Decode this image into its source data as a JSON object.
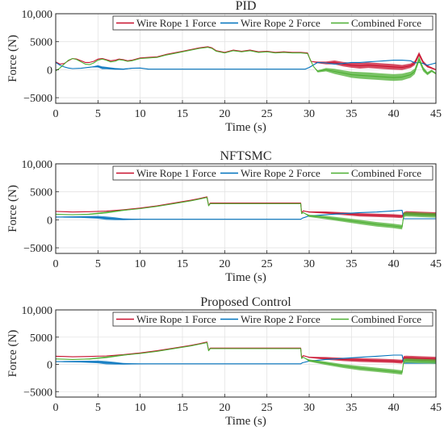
{
  "chart_data": [
    {
      "type": "line",
      "title": "PID",
      "xlabel": "Time (s)",
      "ylabel": "Force (N)",
      "xlim": [
        0,
        45
      ],
      "ylim": [
        -6000,
        10000
      ],
      "xticks": [
        0,
        5,
        10,
        15,
        20,
        25,
        30,
        35,
        40,
        45
      ],
      "yticks": [
        -5000,
        0,
        5000,
        10000
      ],
      "ytick_labels": [
        "−5000",
        "0",
        "5000",
        "10,000"
      ],
      "grid": true,
      "legend": "top-right",
      "series": [
        {
          "name": "Wire Rope 1 Force",
          "color": "#c8102e",
          "x": [
            0,
            0.5,
            1,
            1.5,
            2,
            2.5,
            3,
            3.5,
            4,
            4.5,
            5,
            5.5,
            6,
            6.5,
            7,
            7.5,
            8,
            8.5,
            9,
            10,
            11,
            12,
            13,
            14,
            15,
            16,
            17,
            18,
            18.5,
            19,
            20,
            21,
            22,
            23,
            24,
            25,
            26,
            27,
            28,
            29,
            29.8,
            30.2,
            31,
            32,
            33,
            34,
            35,
            36,
            37,
            38,
            39,
            40,
            41,
            42,
            42.5,
            43,
            43.5,
            44,
            45
          ],
          "y": [
            1400,
            1000,
            1100,
            1600,
            2000,
            1900,
            1600,
            1300,
            1300,
            1500,
            1900,
            2000,
            1800,
            1600,
            1700,
            1900,
            1800,
            1600,
            1700,
            2100,
            2200,
            2300,
            2700,
            3000,
            3300,
            3600,
            3900,
            4100,
            3900,
            3400,
            3100,
            3500,
            3300,
            3500,
            3200,
            3300,
            3100,
            3200,
            3100,
            3100,
            3000,
            1500,
            1300,
            1200,
            1300,
            1000,
            800,
            700,
            800,
            700,
            600,
            500,
            400,
            700,
            1200,
            2800,
            1300,
            600,
            0
          ],
          "noise": [
            0,
            0,
            0,
            0,
            0,
            0,
            0,
            0,
            0,
            0,
            0,
            0,
            0,
            0,
            0,
            0,
            0,
            0,
            0,
            0,
            0,
            0,
            0,
            0,
            0,
            0,
            0,
            0,
            0,
            0,
            0,
            0,
            0,
            0,
            0,
            0,
            0,
            0,
            0,
            0,
            0,
            0,
            150,
            250,
            350,
            400,
            450,
            500,
            500,
            500,
            500,
            500,
            450,
            400,
            400,
            400,
            300,
            200,
            100
          ]
        },
        {
          "name": "Wire Rope 2 Force",
          "color": "#0072bd",
          "x": [
            0,
            0.5,
            1,
            1.5,
            2,
            3,
            4,
            5,
            5.5,
            6,
            7,
            8,
            9,
            10,
            11,
            12,
            13,
            15,
            20,
            25,
            29.5,
            30,
            31,
            32,
            33,
            34,
            35,
            36,
            37,
            38,
            39,
            40,
            41,
            42,
            42.5,
            43,
            43.5,
            44,
            44.5,
            45
          ],
          "y": [
            1300,
            800,
            500,
            300,
            200,
            250,
            450,
            600,
            350,
            300,
            150,
            100,
            250,
            300,
            100,
            100,
            100,
            100,
            100,
            100,
            100,
            400,
            1300,
            1200,
            1000,
            1100,
            1300,
            1300,
            1400,
            1500,
            1600,
            1700,
            1700,
            1600,
            1200,
            1300,
            1100,
            800,
            1000,
            1200
          ],
          "noise": [
            0,
            0,
            0,
            0,
            0,
            0,
            0,
            200,
            250,
            200,
            150,
            100,
            50,
            30,
            0,
            0,
            0,
            0,
            0,
            0,
            0,
            0,
            0,
            0,
            0,
            0,
            0,
            0,
            0,
            0,
            0,
            0,
            0,
            0,
            0,
            0,
            0,
            0,
            0,
            0
          ]
        },
        {
          "name": "Combined Force",
          "color": "#4daf33",
          "x": [
            0,
            0.5,
            1,
            1.5,
            2,
            2.5,
            3,
            3.5,
            4,
            4.5,
            5,
            5.5,
            6,
            6.5,
            7,
            7.5,
            8,
            8.5,
            9,
            10,
            11,
            12,
            13,
            14,
            15,
            16,
            17,
            18,
            18.5,
            19,
            20,
            21,
            22,
            23,
            24,
            25,
            26,
            27,
            28,
            29,
            29.8,
            30.5,
            31,
            32,
            33,
            34,
            35,
            36,
            37,
            38,
            39,
            40,
            41,
            42,
            42.5,
            43,
            43.5,
            44,
            44.5,
            45
          ],
          "y": [
            -200,
            300,
            1000,
            1700,
            2000,
            1800,
            1400,
            1000,
            900,
            1200,
            1700,
            1900,
            1700,
            1400,
            1500,
            1800,
            1700,
            1500,
            1600,
            2000,
            2100,
            2200,
            2600,
            2900,
            3200,
            3500,
            3800,
            4000,
            3800,
            3300,
            3000,
            3400,
            3200,
            3400,
            3100,
            3200,
            3000,
            3100,
            3000,
            3000,
            2900,
            600,
            -300,
            0,
            -300,
            -600,
            -900,
            -1000,
            -1100,
            -1200,
            -1300,
            -1400,
            -1300,
            -900,
            -300,
            1900,
            100,
            -700,
            -200,
            -700
          ],
          "noise": [
            0,
            0,
            0,
            0,
            0,
            0,
            0,
            0,
            0,
            0,
            0,
            0,
            0,
            0,
            0,
            0,
            0,
            0,
            0,
            0,
            0,
            0,
            0,
            0,
            0,
            0,
            0,
            0,
            0,
            0,
            0,
            0,
            0,
            0,
            0,
            0,
            0,
            0,
            0,
            0,
            0,
            0,
            200,
            300,
            450,
            500,
            550,
            600,
            600,
            600,
            600,
            600,
            600,
            550,
            500,
            500,
            400,
            300,
            200,
            150
          ]
        }
      ]
    },
    {
      "type": "line",
      "title": "NFTSMC",
      "xlabel": "Time (s)",
      "ylabel": "Force (N)",
      "xlim": [
        0,
        45
      ],
      "ylim": [
        -6000,
        10000
      ],
      "xticks": [
        0,
        5,
        10,
        15,
        20,
        25,
        30,
        35,
        40,
        45
      ],
      "yticks": [
        -5000,
        0,
        5000,
        10000
      ],
      "ytick_labels": [
        "−5000",
        "0",
        "5000",
        "10,000"
      ],
      "grid": true,
      "legend": "top-right",
      "series": [
        {
          "name": "Wire Rope 1 Force",
          "color": "#c8102e",
          "x": [
            0,
            1,
            2,
            4,
            6,
            8,
            10,
            12,
            14,
            16,
            17,
            17.9,
            18.1,
            18.3,
            20,
            25,
            29,
            29.1,
            29.3,
            30,
            32,
            34,
            36,
            38,
            40,
            41,
            41.2,
            41.5,
            43,
            45
          ],
          "y": [
            1500,
            1450,
            1400,
            1450,
            1550,
            1800,
            2100,
            2500,
            3000,
            3500,
            3800,
            4100,
            2600,
            3000,
            3000,
            3000,
            3000,
            1300,
            1600,
            1400,
            1300,
            1100,
            900,
            800,
            700,
            600,
            1100,
            1200,
            1100,
            1000
          ],
          "noise": [
            0,
            0,
            0,
            0,
            0,
            0,
            0,
            0,
            0,
            0,
            0,
            0,
            0,
            0,
            0,
            0,
            0,
            0,
            0,
            100,
            200,
            250,
            300,
            300,
            300,
            300,
            300,
            350,
            350,
            350
          ]
        },
        {
          "name": "Wire Rope 2 Force",
          "color": "#0072bd",
          "x": [
            0,
            1,
            3,
            5,
            6,
            7,
            8,
            9,
            10,
            12,
            15,
            18,
            20,
            25,
            29,
            29.2,
            30,
            32,
            34,
            36,
            38,
            40,
            41,
            41.2,
            43,
            45
          ],
          "y": [
            500,
            500,
            500,
            450,
            300,
            200,
            100,
            100,
            100,
            100,
            100,
            100,
            100,
            100,
            100,
            300,
            700,
            900,
            1100,
            1300,
            1400,
            1600,
            1700,
            200,
            200,
            200
          ],
          "noise": [
            0,
            100,
            150,
            250,
            300,
            250,
            150,
            100,
            50,
            0,
            0,
            0,
            0,
            0,
            0,
            0,
            0,
            0,
            0,
            0,
            0,
            0,
            0,
            0,
            0,
            0
          ]
        },
        {
          "name": "Combined Force",
          "color": "#4daf33",
          "x": [
            0,
            1,
            2,
            4,
            6,
            8,
            10,
            12,
            14,
            16,
            17,
            17.9,
            18.1,
            18.3,
            20,
            25,
            29,
            29.1,
            29.3,
            30,
            32,
            34,
            36,
            38,
            40,
            41,
            41.2,
            41.5,
            43,
            45
          ],
          "y": [
            1000,
            950,
            900,
            1000,
            1300,
            1700,
            2000,
            2400,
            2900,
            3400,
            3700,
            4000,
            2500,
            2900,
            2900,
            2900,
            2900,
            1100,
            1300,
            700,
            400,
            0,
            -400,
            -800,
            -1100,
            -1300,
            900,
            1000,
            900,
            800
          ],
          "noise": [
            0,
            0,
            0,
            100,
            150,
            100,
            0,
            0,
            0,
            0,
            0,
            0,
            0,
            0,
            0,
            0,
            0,
            0,
            0,
            200,
            300,
            350,
            400,
            400,
            400,
            400,
            400,
            400,
            400,
            400
          ]
        }
      ]
    },
    {
      "type": "line",
      "title": "Proposed Control",
      "xlabel": "Time (s)",
      "ylabel": "Force (N)",
      "xlim": [
        0,
        45
      ],
      "ylim": [
        -6000,
        10000
      ],
      "xticks": [
        0,
        5,
        10,
        15,
        20,
        25,
        30,
        35,
        40,
        45
      ],
      "yticks": [
        -5000,
        0,
        5000,
        10000
      ],
      "ytick_labels": [
        "−5000",
        "0",
        "5000",
        "10,000"
      ],
      "grid": true,
      "legend": "top-right",
      "series": [
        {
          "name": "Wire Rope 1 Force",
          "color": "#c8102e",
          "x": [
            0,
            1,
            2,
            4,
            6,
            8,
            10,
            12,
            14,
            16,
            17,
            17.9,
            18.1,
            18.3,
            20,
            25,
            29,
            29.1,
            29.3,
            30,
            32,
            34,
            36,
            38,
            40,
            41,
            41.2,
            41.5,
            43,
            45
          ],
          "y": [
            1500,
            1450,
            1400,
            1450,
            1550,
            1800,
            2100,
            2500,
            3000,
            3500,
            3800,
            4100,
            2600,
            3000,
            3000,
            3000,
            3000,
            1300,
            1600,
            1300,
            1100,
            900,
            800,
            700,
            600,
            500,
            1200,
            1200,
            1100,
            1000
          ],
          "noise": [
            0,
            0,
            0,
            0,
            0,
            0,
            0,
            0,
            0,
            0,
            0,
            0,
            0,
            0,
            0,
            0,
            0,
            0,
            0,
            100,
            250,
            300,
            350,
            350,
            350,
            350,
            350,
            400,
            400,
            400
          ]
        },
        {
          "name": "Wire Rope 2 Force",
          "color": "#0072bd",
          "x": [
            0,
            1,
            3,
            5,
            6,
            7,
            8,
            9,
            10,
            12,
            15,
            18,
            20,
            25,
            29,
            29.2,
            30,
            32,
            34,
            36,
            38,
            40,
            41,
            41.2,
            43,
            45
          ],
          "y": [
            500,
            500,
            500,
            450,
            300,
            200,
            100,
            100,
            100,
            100,
            100,
            100,
            100,
            100,
            100,
            300,
            600,
            900,
            1100,
            1300,
            1500,
            1700,
            1700,
            200,
            200,
            200
          ],
          "noise": [
            0,
            100,
            150,
            250,
            300,
            250,
            150,
            100,
            50,
            0,
            0,
            0,
            0,
            0,
            0,
            0,
            0,
            0,
            0,
            0,
            0,
            0,
            0,
            0,
            0,
            0
          ]
        },
        {
          "name": "Combined Force",
          "color": "#4daf33",
          "x": [
            0,
            1,
            2,
            4,
            6,
            8,
            10,
            12,
            14,
            16,
            17,
            17.9,
            18.1,
            18.3,
            20,
            25,
            29,
            29.1,
            29.3,
            30,
            32,
            34,
            36,
            38,
            40,
            41,
            41.2,
            41.5,
            43,
            45
          ],
          "y": [
            1000,
            950,
            900,
            1000,
            1300,
            1700,
            2000,
            2400,
            2900,
            3400,
            3700,
            4000,
            2500,
            2900,
            2900,
            2900,
            2900,
            1100,
            1300,
            700,
            200,
            -300,
            -700,
            -1000,
            -1300,
            -1500,
            600,
            700,
            600,
            500
          ],
          "noise": [
            0,
            0,
            0,
            100,
            150,
            100,
            0,
            0,
            0,
            0,
            0,
            0,
            0,
            0,
            0,
            0,
            0,
            0,
            0,
            200,
            300,
            350,
            400,
            400,
            400,
            400,
            400,
            400,
            400,
            400
          ]
        }
      ]
    }
  ]
}
